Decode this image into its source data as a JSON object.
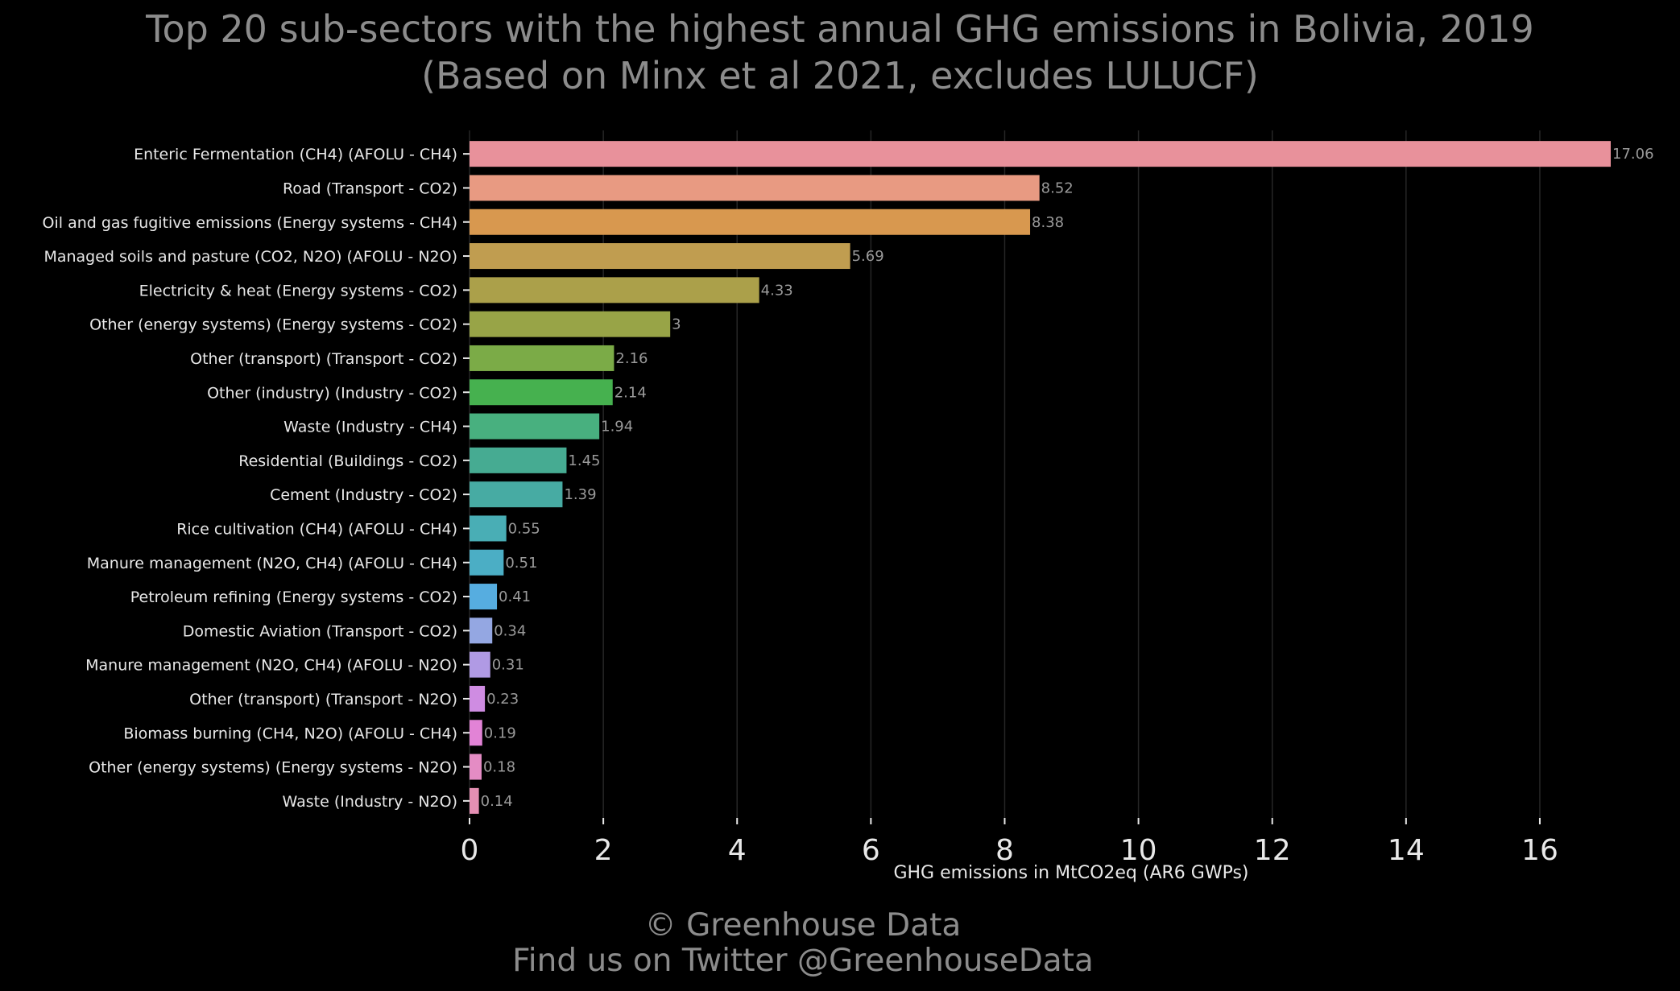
{
  "chart_data": {
    "type": "bar",
    "orientation": "horizontal",
    "title": "Top 20 sub-sectors with the highest annual GHG emissions in Bolivia, 2019",
    "subtitle": "(Based on Minx et al 2021, excludes LULUCF)",
    "xlabel": "GHG emissions in MtCO2eq (AR6 GWPs)",
    "ylabel": "",
    "xlim": [
      0,
      17.06
    ],
    "xticks": [
      0,
      2,
      4,
      6,
      8,
      10,
      12,
      14,
      16
    ],
    "grid": true,
    "categories": [
      "Enteric Fermentation (CH4) (AFOLU - CH4)",
      "Road (Transport - CO2)",
      "Oil and gas fugitive emissions (Energy systems - CH4)",
      "Managed soils and pasture (CO2, N2O) (AFOLU - N2O)",
      "Electricity & heat (Energy systems - CO2)",
      "Other (energy systems) (Energy systems - CO2)",
      "Other (transport) (Transport - CO2)",
      "Other (industry) (Industry - CO2)",
      "Waste (Industry - CH4)",
      "Residential (Buildings - CO2)",
      "Cement (Industry - CO2)",
      "Rice cultivation (CH4) (AFOLU - CH4)",
      "Manure management (N2O, CH4) (AFOLU - CH4)",
      "Petroleum refining (Energy systems - CO2)",
      "Domestic Aviation (Transport - CO2)",
      "Manure management (N2O, CH4) (AFOLU - N2O)",
      "Other (transport) (Transport - N2O)",
      "Biomass burning (CH4, N2O) (AFOLU - CH4)",
      "Other (energy systems) (Energy systems - N2O)",
      "Waste (Industry - N2O)"
    ],
    "values": [
      17.06,
      8.52,
      8.38,
      5.69,
      4.33,
      3,
      2.16,
      2.14,
      1.94,
      1.45,
      1.39,
      0.55,
      0.51,
      0.41,
      0.34,
      0.31,
      0.23,
      0.19,
      0.18,
      0.14
    ],
    "value_labels": [
      "17.06",
      "8.52",
      "8.38",
      "5.69",
      "4.33",
      "3",
      "2.16",
      "2.14",
      "1.94",
      "1.45",
      "1.39",
      "0.55",
      "0.51",
      "0.41",
      "0.34",
      "0.31",
      "0.23",
      "0.19",
      "0.18",
      "0.14"
    ],
    "colors": [
      "#e8919b",
      "#e89a82",
      "#d8984f",
      "#c09d50",
      "#aba04a",
      "#98a447",
      "#7bab47",
      "#46b14f",
      "#48b07f",
      "#46ab92",
      "#47aba3",
      "#49aeb5",
      "#4baec5",
      "#56ade0",
      "#94a7e2",
      "#b09ae4",
      "#cf8ce2",
      "#e283d6",
      "#e48cc4",
      "#e58fb3"
    ]
  },
  "credit": {
    "line1": "© Greenhouse Data",
    "line2": "Find us on Twitter @GreenhouseData"
  }
}
